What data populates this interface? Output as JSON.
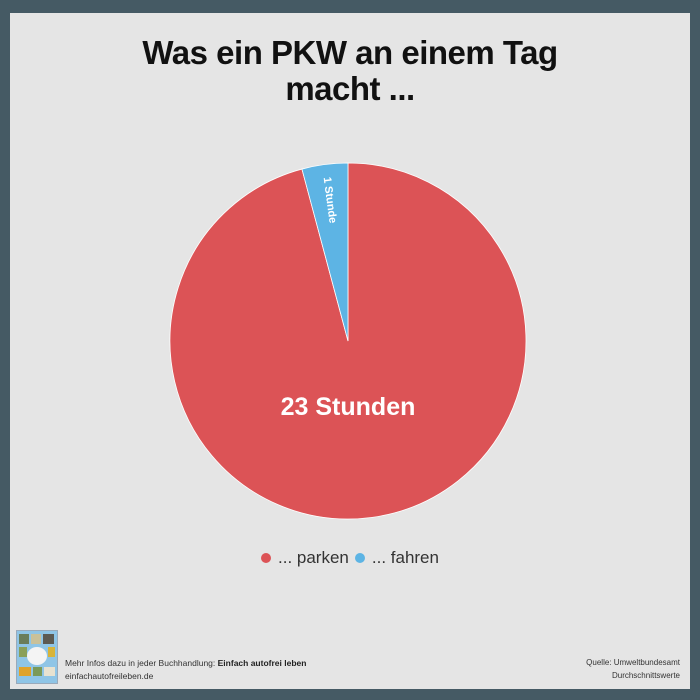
{
  "title": {
    "line1": "Was ein PKW an einem Tag",
    "line2": "macht ..."
  },
  "chart_data": {
    "type": "pie",
    "title": "Was ein PKW an einem Tag macht ...",
    "categories": [
      "... parken",
      "... fahren"
    ],
    "values": [
      23,
      1
    ],
    "unit": "Stunden",
    "labels": [
      "23 Stunden",
      "1 Stunde"
    ],
    "colors": [
      "#dc5356",
      "#5db4e4"
    ],
    "start_angle_deg": 0,
    "direction": "clockwise",
    "legend_position": "bottom"
  },
  "legend": {
    "items": [
      {
        "label": "... parken",
        "color": "#dc5356"
      },
      {
        "label": "... fahren",
        "color": "#5db4e4"
      }
    ]
  },
  "footer": {
    "prefix": "Mehr Infos dazu in jeder Buchhandlung: ",
    "book_title": "Einfach autofrei leben",
    "website": "einfachautofreileben.de",
    "source": "Quelle: Umweltbundesamt",
    "note": "Durchschnittswerte"
  },
  "colors": {
    "frame": "#455a64",
    "background": "#e5e5e5"
  }
}
